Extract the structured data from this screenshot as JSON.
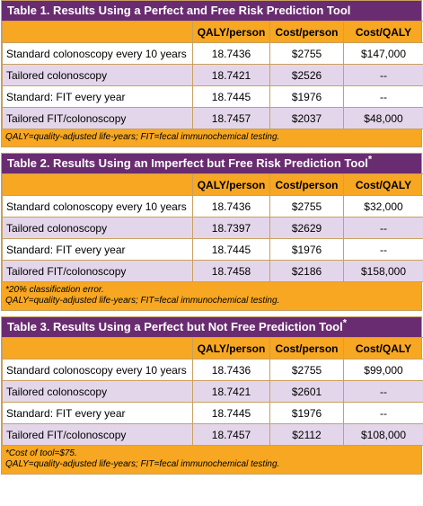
{
  "headers": [
    "QALY/person",
    "Cost/person",
    "Cost/QALY"
  ],
  "tables": [
    {
      "title": "Table 1. Results Using a Perfect and Free Risk Prediction Tool",
      "asterisk": "",
      "rows": [
        [
          "Standard colonoscopy every 10 years",
          "18.7436",
          "$2755",
          "$147,000"
        ],
        [
          "Tailored colonoscopy",
          "18.7421",
          "$2526",
          "--"
        ],
        [
          "Standard: FIT every year",
          "18.7445",
          "$1976",
          "--"
        ],
        [
          "Tailored FIT/colonoscopy",
          "18.7457",
          "$2037",
          "$48,000"
        ]
      ],
      "notes": [
        "QALY=quality-adjusted life-years; FIT=fecal immunochemical testing."
      ]
    },
    {
      "title": "Table 2. Results Using an Imperfect but Free Risk Prediction Tool",
      "asterisk": "*",
      "rows": [
        [
          "Standard colonoscopy every 10 years",
          "18.7436",
          "$2755",
          "$32,000"
        ],
        [
          "Tailored colonoscopy",
          "18.7397",
          "$2629",
          "--"
        ],
        [
          "Standard: FIT every year",
          "18.7445",
          "$1976",
          "--"
        ],
        [
          "Tailored FIT/colonoscopy",
          "18.7458",
          "$2186",
          "$158,000"
        ]
      ],
      "notes": [
        "*20% classification error.",
        "QALY=quality-adjusted life-years; FIT=fecal immunochemical testing."
      ]
    },
    {
      "title": "Table 3. Results Using a Perfect but Not Free Prediction Tool",
      "asterisk": "*",
      "rows": [
        [
          "Standard colonoscopy every 10 years",
          "18.7436",
          "$2755",
          "$99,000"
        ],
        [
          "Tailored colonoscopy",
          "18.7421",
          "$2601",
          "--"
        ],
        [
          "Standard: FIT every year",
          "18.7445",
          "$1976",
          "--"
        ],
        [
          "Tailored FIT/colonoscopy",
          "18.7457",
          "$2112",
          "$108,000"
        ]
      ],
      "notes": [
        "*Cost of tool=$75.",
        "QALY=quality-adjusted life-years; FIT=fecal immunochemical testing."
      ]
    }
  ]
}
